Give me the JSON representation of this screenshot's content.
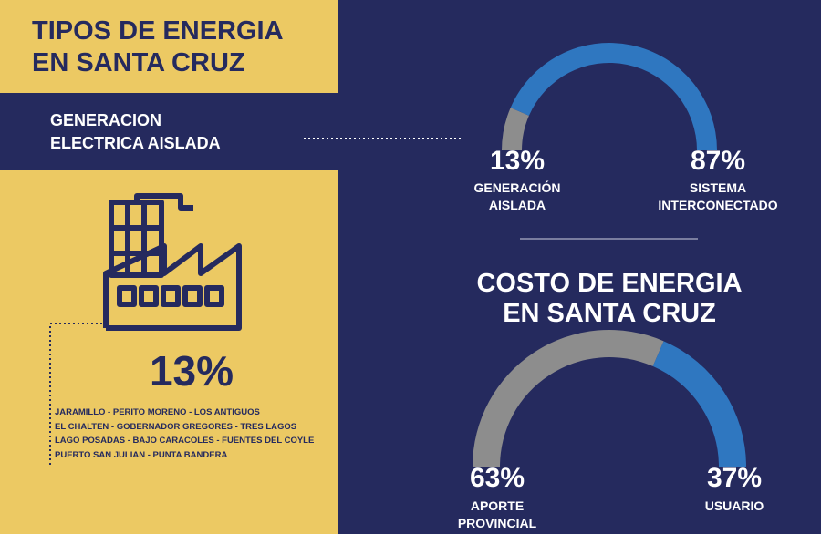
{
  "header": {
    "title": [
      "TIPOS DE ENERGIA",
      "EN SANTA CRUZ"
    ]
  },
  "section": {
    "title": [
      "GENERACION",
      "ELECTRICA AISLADA"
    ]
  },
  "isolated": {
    "percent": "13%",
    "locations": [
      "JARAMILLO - PERITO MORENO - LOS ANTIGUOS",
      "EL CHALTEN - GOBERNADOR GREGORES - TRES LAGOS",
      "LAGO POSADAS - BAJO CARACOLES - FUENTES DEL COYLE",
      "PUERTO SAN JULIAN - PUNTA BANDERA"
    ]
  },
  "chart_data": [
    {
      "type": "semidonut",
      "categories": [
        "GENERACIÓN AISLADA",
        "SISTEMA INTERCONECTADO"
      ],
      "values": [
        13,
        87
      ],
      "value_labels": [
        "13%",
        "87%"
      ],
      "colors": [
        "#8d8d8d",
        "#2f77c0"
      ]
    },
    {
      "type": "semidonut",
      "title": [
        "COSTO DE ENERGIA",
        "EN SANTA CRUZ"
      ],
      "categories": [
        "APORTE PROVINCIAL",
        "USUARIO"
      ],
      "values": [
        63,
        37
      ],
      "value_labels": [
        "63%",
        "37%"
      ],
      "colors": [
        "#8d8d8d",
        "#2f77c0"
      ]
    }
  ]
}
